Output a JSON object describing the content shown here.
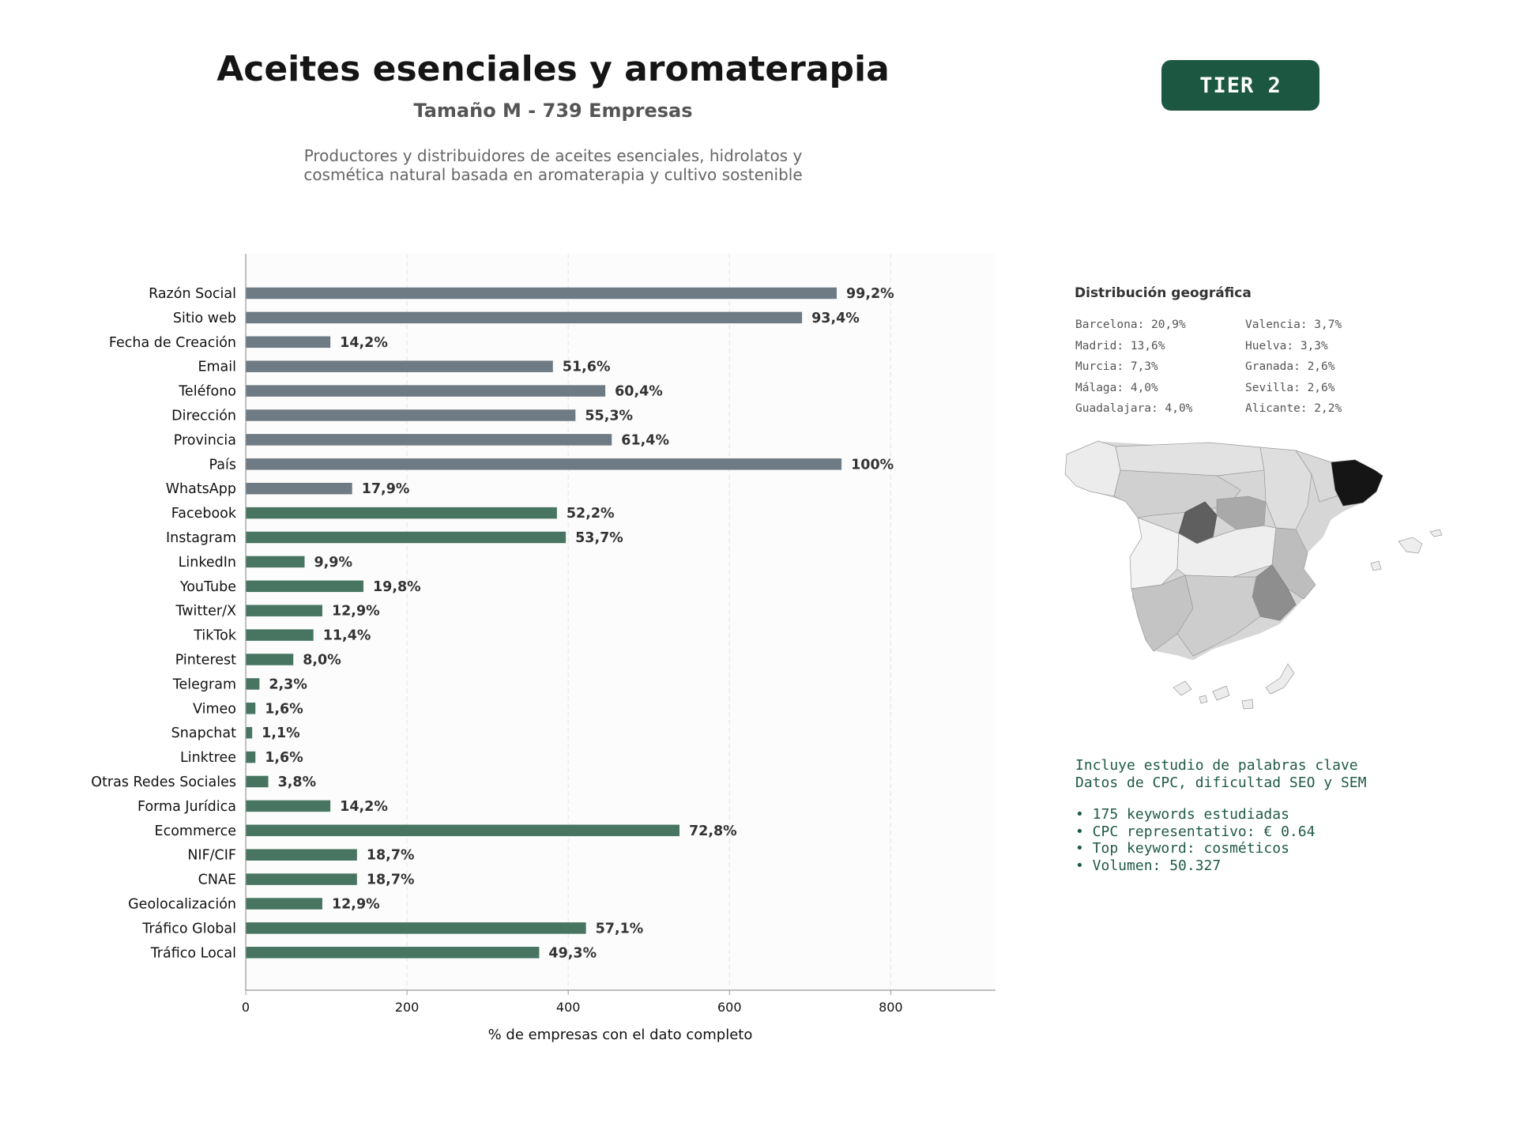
{
  "header": {
    "title": "Aceites esenciales y aromaterapia",
    "subtitle": "Tamaño M - 739 Empresas",
    "description_line1": "Productores y distribuidores de aceites esenciales, hidrolatos y",
    "description_line2": "cosmética natural basada en aromaterapia y cultivo sostenible",
    "tier": "TIER 2"
  },
  "colors": {
    "contact_bar": "#6e7a84",
    "digital_bar": "#477562",
    "badge": "#1c5741",
    "keywords_text": "#1f5a44"
  },
  "chart_data": {
    "type": "bar",
    "orientation": "horizontal",
    "xlabel": "% de empresas con el dato completo",
    "xlim": [
      0,
      930
    ],
    "xticks": [
      0,
      200,
      400,
      600,
      800
    ],
    "grid": "x dashed",
    "categories": [
      "Razón Social",
      "Sitio web",
      "Fecha de Creación",
      "Email",
      "Teléfono",
      "Dirección",
      "Provincia",
      "País",
      "WhatsApp",
      "Facebook",
      "Instagram",
      "LinkedIn",
      "YouTube",
      "Twitter/X",
      "TikTok",
      "Pinterest",
      "Telegram",
      "Vimeo",
      "Snapchat",
      "Linktree",
      "Otras Redes Sociales",
      "Forma Jurídica",
      "Ecommerce",
      "NIF/CIF",
      "CNAE",
      "Geolocalización",
      "Tráfico Global",
      "Tráfico Local"
    ],
    "values": [
      733,
      690,
      105,
      381,
      446,
      409,
      454,
      739,
      132,
      386,
      397,
      73,
      146,
      95,
      84,
      59,
      17,
      12,
      8,
      12,
      28,
      105,
      538,
      138,
      138,
      95,
      422,
      364
    ],
    "labels": [
      "99,2%",
      "93,4%",
      "14,2%",
      "51,6%",
      "60,4%",
      "55,3%",
      "61,4%",
      "100%",
      "17,9%",
      "52,2%",
      "53,7%",
      "9,9%",
      "19,8%",
      "12,9%",
      "11,4%",
      "8,0%",
      "2,3%",
      "1,6%",
      "1,1%",
      "1,6%",
      "3,8%",
      "14,2%",
      "72,8%",
      "18,7%",
      "18,7%",
      "12,9%",
      "57,1%",
      "49,3%"
    ],
    "groups": [
      "contact",
      "contact",
      "contact",
      "contact",
      "contact",
      "contact",
      "contact",
      "contact",
      "contact",
      "digital",
      "digital",
      "digital",
      "digital",
      "digital",
      "digital",
      "digital",
      "digital",
      "digital",
      "digital",
      "digital",
      "digital",
      "digital",
      "digital",
      "digital",
      "digital",
      "digital",
      "digital",
      "digital"
    ]
  },
  "geo": {
    "title": "Distribución geográfica",
    "col1": [
      "Barcelona: 20,9%",
      "Madrid: 13,6%",
      "Murcia: 7,3%",
      "Málaga: 4,0%",
      "Guadalajara: 4,0%"
    ],
    "col2": [
      "Valencia: 3,7%",
      "Huelva: 3,3%",
      "Granada: 2,6%",
      "Sevilla: 2,6%",
      "Alicante: 2,2%"
    ]
  },
  "keywords": {
    "line1": "Incluye estudio de palabras clave",
    "line2": "Datos de CPC, dificultad SEO y SEM",
    "bullets": [
      "• 175 keywords estudiadas",
      "• CPC representativo: € 0.64",
      "• Top keyword: cosméticos",
      "• Volumen: 50.327"
    ]
  }
}
